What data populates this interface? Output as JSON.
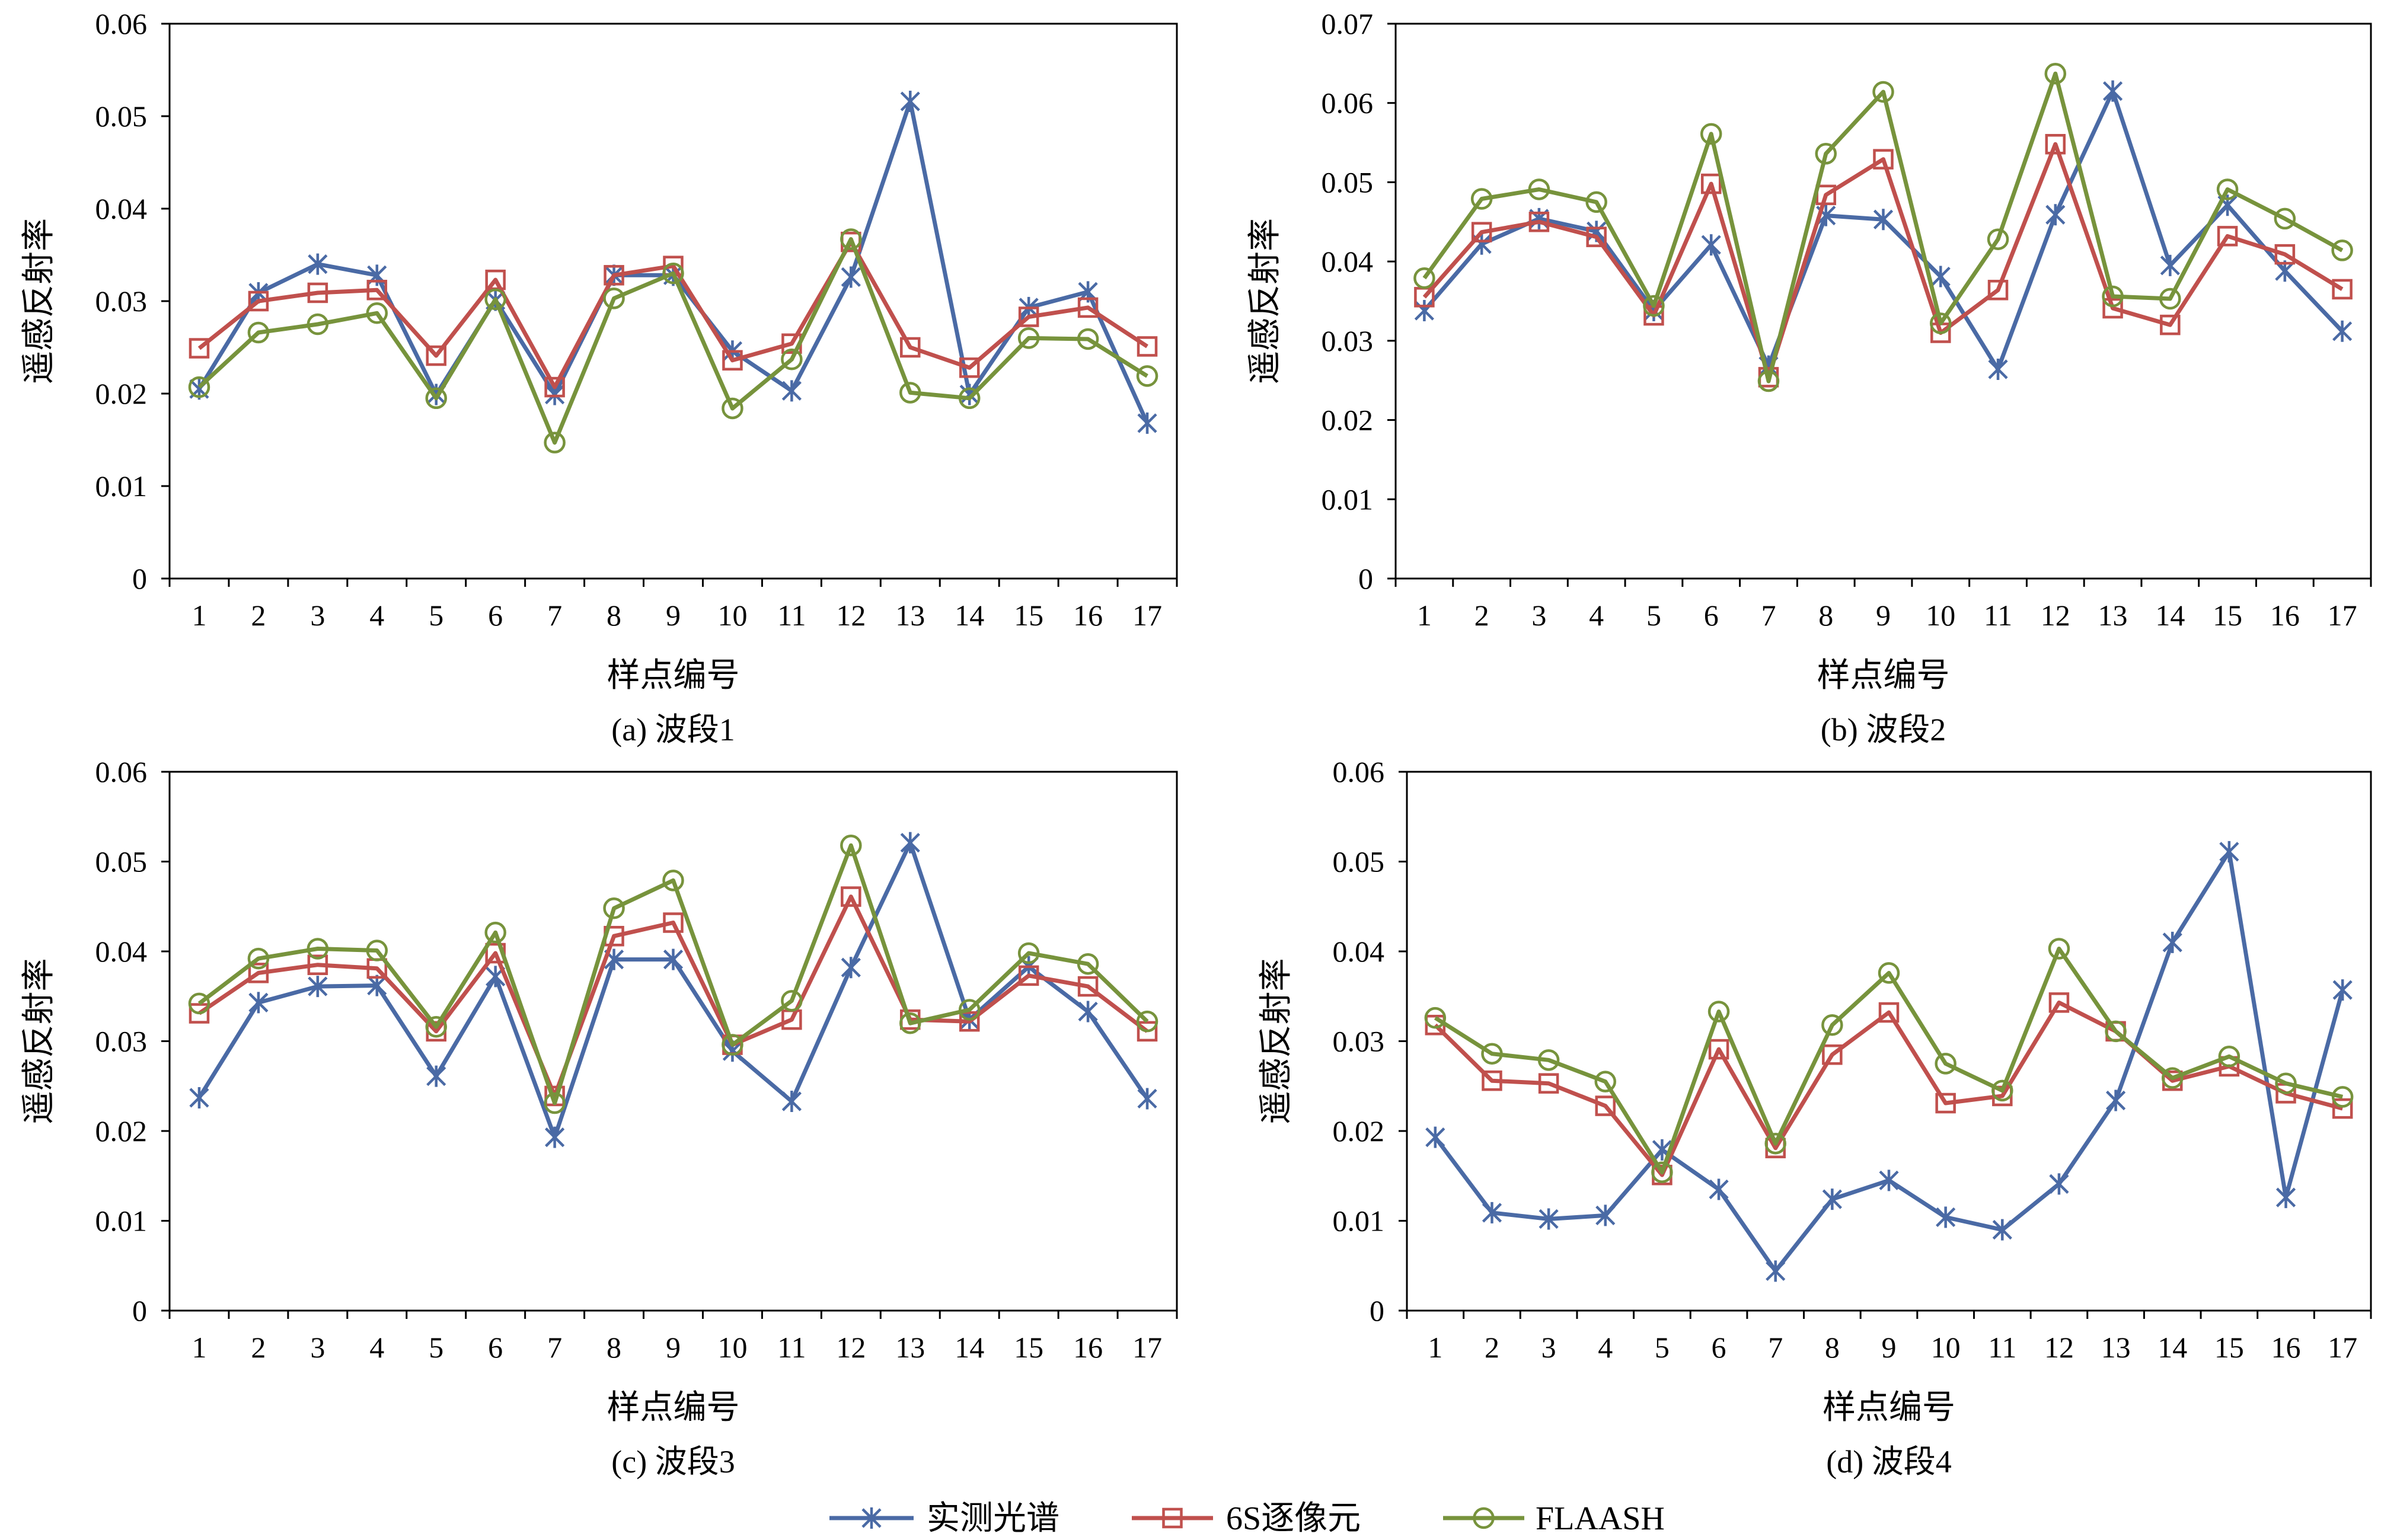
{
  "colors": {
    "measured": "#4A6AA5",
    "s6": "#C0504D",
    "flaash": "#77933C",
    "axis": "#000000"
  },
  "legend": {
    "items": [
      {
        "label": "实测光谱",
        "marker": "star",
        "series": "measured"
      },
      {
        "label": "6S逐像元",
        "marker": "square",
        "series": "s6"
      },
      {
        "label": "FLAASH",
        "marker": "circle",
        "series": "flaash"
      }
    ]
  },
  "chart_data": [
    {
      "type": "line",
      "caption": "(a) 波段1",
      "xlabel": "样点编号",
      "ylabel": "遥感反射率",
      "categories": [
        "1",
        "2",
        "3",
        "4",
        "5",
        "6",
        "7",
        "8",
        "9",
        "10",
        "11",
        "12",
        "13",
        "14",
        "15",
        "16",
        "17"
      ],
      "ylim": [
        0,
        0.06
      ],
      "yticks": [
        "0",
        "0.01",
        "0.02",
        "0.03",
        "0.04",
        "0.05",
        "0.06"
      ],
      "series": [
        {
          "name": "实测光谱",
          "values": [
            0.0205,
            0.0309,
            0.034,
            0.0328,
            0.0199,
            0.0301,
            0.0199,
            0.0328,
            0.0328,
            0.0246,
            0.0203,
            0.0326,
            0.0516,
            0.0199,
            0.0293,
            0.031,
            0.0168
          ]
        },
        {
          "name": "6S逐像元",
          "values": [
            0.0249,
            0.03,
            0.0309,
            0.0312,
            0.0241,
            0.0323,
            0.0207,
            0.0328,
            0.0338,
            0.0236,
            0.0254,
            0.0364,
            0.025,
            0.0228,
            0.0283,
            0.0293,
            0.0251
          ]
        },
        {
          "name": "FLAASH",
          "values": [
            0.0207,
            0.0266,
            0.0275,
            0.0287,
            0.0195,
            0.0302,
            0.0147,
            0.0303,
            0.033,
            0.0184,
            0.0237,
            0.0367,
            0.0201,
            0.0195,
            0.026,
            0.0259,
            0.0219
          ]
        }
      ]
    },
    {
      "type": "line",
      "caption": "(b) 波段2",
      "xlabel": "样点编号",
      "ylabel": "遥感反射率",
      "categories": [
        "1",
        "2",
        "3",
        "4",
        "5",
        "6",
        "7",
        "8",
        "9",
        "10",
        "11",
        "12",
        "13",
        "14",
        "15",
        "16",
        "17"
      ],
      "ylim": [
        0,
        0.07
      ],
      "yticks": [
        "0",
        "0.01",
        "0.02",
        "0.03",
        "0.04",
        "0.05",
        "0.06",
        "0.07"
      ],
      "series": [
        {
          "name": "实测光谱",
          "values": [
            0.0338,
            0.0422,
            0.0454,
            0.0438,
            0.0338,
            0.0421,
            0.0268,
            0.0458,
            0.0453,
            0.0381,
            0.0264,
            0.0459,
            0.0615,
            0.0395,
            0.0471,
            0.0388,
            0.0312
          ]
        },
        {
          "name": "6S逐像元",
          "values": [
            0.0355,
            0.0437,
            0.045,
            0.0431,
            0.0332,
            0.0498,
            0.0254,
            0.0484,
            0.0529,
            0.031,
            0.0364,
            0.0548,
            0.0341,
            0.032,
            0.0432,
            0.0409,
            0.0365
          ]
        },
        {
          "name": "FLAASH",
          "values": [
            0.0379,
            0.0479,
            0.0491,
            0.0475,
            0.0344,
            0.0561,
            0.0249,
            0.0536,
            0.0614,
            0.0322,
            0.0428,
            0.0637,
            0.0356,
            0.0353,
            0.0491,
            0.0454,
            0.0414
          ]
        }
      ]
    },
    {
      "type": "line",
      "caption": "(c) 波段3",
      "xlabel": "样点编号",
      "ylabel": "遥感反射率",
      "categories": [
        "1",
        "2",
        "3",
        "4",
        "5",
        "6",
        "7",
        "8",
        "9",
        "10",
        "11",
        "12",
        "13",
        "14",
        "15",
        "16",
        "17"
      ],
      "ylim": [
        0,
        0.06
      ],
      "yticks": [
        "0",
        "0.01",
        "0.02",
        "0.03",
        "0.04",
        "0.05",
        "0.06"
      ],
      "series": [
        {
          "name": "实测光谱",
          "values": [
            0.0237,
            0.0343,
            0.0361,
            0.0362,
            0.0261,
            0.0372,
            0.0193,
            0.0391,
            0.0391,
            0.0289,
            0.0233,
            0.0382,
            0.0521,
            0.0324,
            0.0383,
            0.0333,
            0.0236
          ]
        },
        {
          "name": "6S逐像元",
          "values": [
            0.0331,
            0.0376,
            0.0385,
            0.0381,
            0.0311,
            0.0398,
            0.0239,
            0.0417,
            0.0432,
            0.0296,
            0.0324,
            0.0461,
            0.0324,
            0.0322,
            0.0373,
            0.0361,
            0.0311
          ]
        },
        {
          "name": "FLAASH",
          "values": [
            0.0342,
            0.0392,
            0.0403,
            0.0401,
            0.0316,
            0.0421,
            0.0231,
            0.0448,
            0.0479,
            0.0296,
            0.0345,
            0.0518,
            0.032,
            0.0335,
            0.0398,
            0.0386,
            0.0322
          ]
        }
      ]
    },
    {
      "type": "line",
      "caption": "(d) 波段4",
      "xlabel": "样点编号",
      "ylabel": "遥感反射率",
      "categories": [
        "1",
        "2",
        "3",
        "4",
        "5",
        "6",
        "7",
        "8",
        "9",
        "10",
        "11",
        "12",
        "13",
        "14",
        "15",
        "16",
        "17"
      ],
      "ylim": [
        0,
        0.06
      ],
      "yticks": [
        "0",
        "0.01",
        "0.02",
        "0.03",
        "0.04",
        "0.05",
        "0.06"
      ],
      "series": [
        {
          "name": "实测光谱",
          "values": [
            0.0193,
            0.0109,
            0.0102,
            0.0106,
            0.0179,
            0.0135,
            0.0044,
            0.0124,
            0.0145,
            0.0104,
            0.009,
            0.0141,
            0.0234,
            0.041,
            0.0511,
            0.0126,
            0.0357
          ]
        },
        {
          "name": "6S逐像元",
          "values": [
            0.0318,
            0.0256,
            0.0253,
            0.0228,
            0.0151,
            0.0291,
            0.0181,
            0.0285,
            0.0332,
            0.0231,
            0.0239,
            0.0343,
            0.0311,
            0.0256,
            0.0272,
            0.0242,
            0.0225
          ]
        },
        {
          "name": "FLAASH",
          "values": [
            0.0326,
            0.0286,
            0.0279,
            0.0255,
            0.0154,
            0.0333,
            0.0186,
            0.0318,
            0.0376,
            0.0275,
            0.0245,
            0.0403,
            0.0311,
            0.0259,
            0.0283,
            0.0253,
            0.0238
          ]
        }
      ]
    }
  ]
}
